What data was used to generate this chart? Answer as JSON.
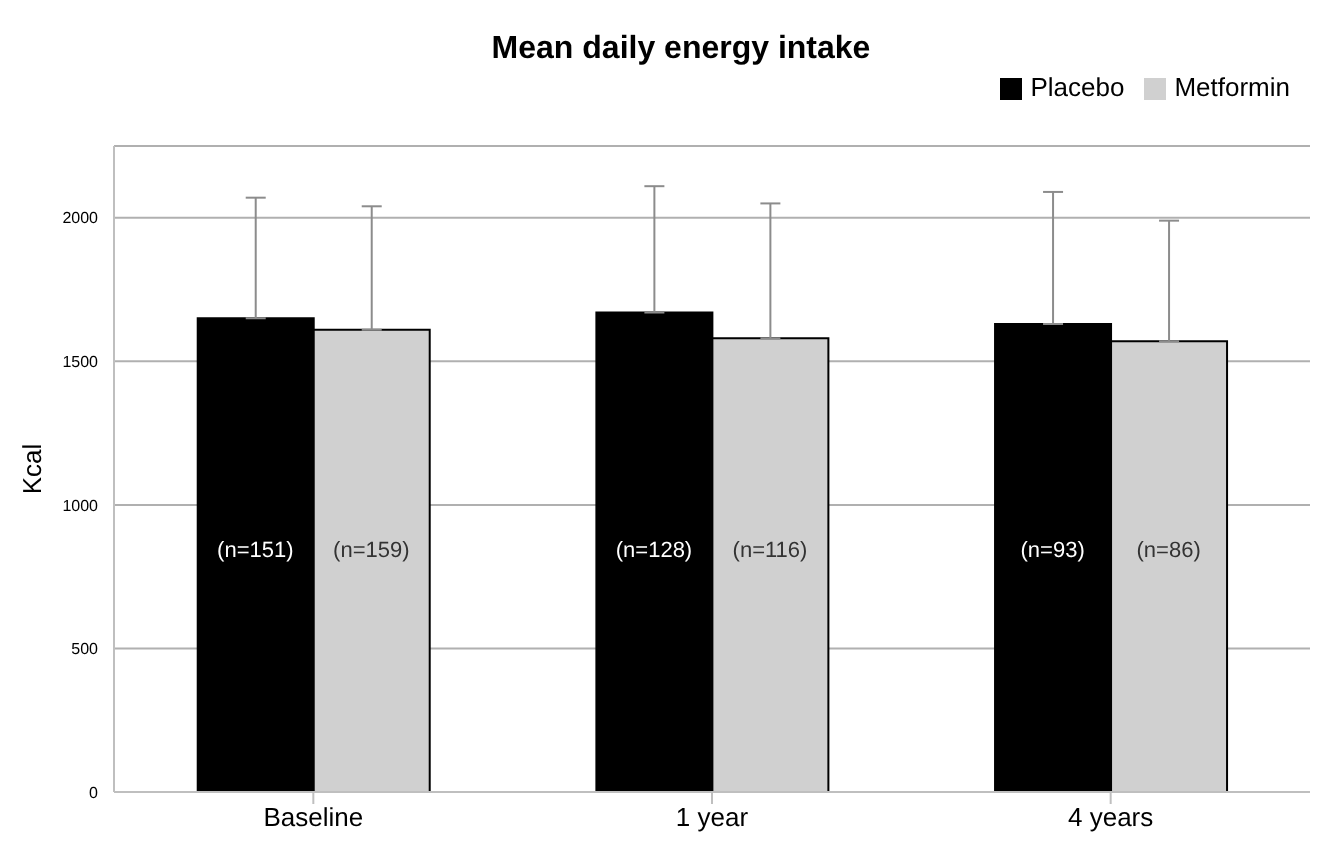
{
  "chart_data": {
    "type": "bar",
    "title": "Mean daily energy intake",
    "ylabel": "Kcal",
    "categories": [
      "Baseline",
      "1 year",
      "4 years"
    ],
    "series": [
      {
        "name": "Placebo",
        "color": "#000000",
        "values": [
          1650,
          1670,
          1630
        ],
        "errors": [
          [
            1650,
            2070
          ],
          [
            1670,
            2110
          ],
          [
            1630,
            2090
          ]
        ]
      },
      {
        "name": "Metformin",
        "color": "#d0d0d0",
        "values": [
          1610,
          1580,
          1570
        ],
        "errors": [
          [
            1610,
            2040
          ],
          [
            1580,
            2050
          ],
          [
            1570,
            1990
          ]
        ]
      }
    ],
    "annotations": [
      {
        "text": "(n=151)",
        "x": "Baseline",
        "y": 840
      },
      {
        "text": "(n=159)",
        "x": "Baseline",
        "y": 840
      },
      {
        "text": "(n=128)",
        "x": "1 year",
        "y": 840
      },
      {
        "text": "(n=116)",
        "x": "1 year",
        "y": 840
      },
      {
        "text": "(n=93)",
        "x": "4 years",
        "y": 840
      },
      {
        "text": "(n=86)",
        "x": "4 years",
        "y": 840
      }
    ],
    "ylim": [
      0,
      2250
    ],
    "yticks": [
      0,
      500,
      1000,
      1500,
      2000
    ],
    "grid": "y",
    "legend": "top right"
  }
}
